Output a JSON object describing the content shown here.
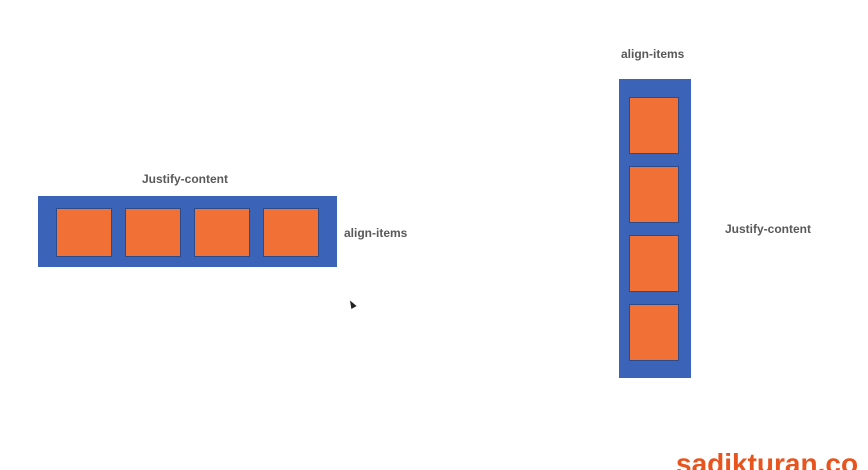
{
  "row_diagram": {
    "top_label": "Justify-content",
    "side_label": "align-items",
    "item_count": 4
  },
  "column_diagram": {
    "top_label": "align-items",
    "side_label": "Justify-content",
    "item_count": 4
  },
  "colors": {
    "container": "#3b63b8",
    "item": "#f07036",
    "label": "#595959",
    "watermark": "#e8541e"
  },
  "watermark": {
    "text": "sadikturan.co"
  }
}
